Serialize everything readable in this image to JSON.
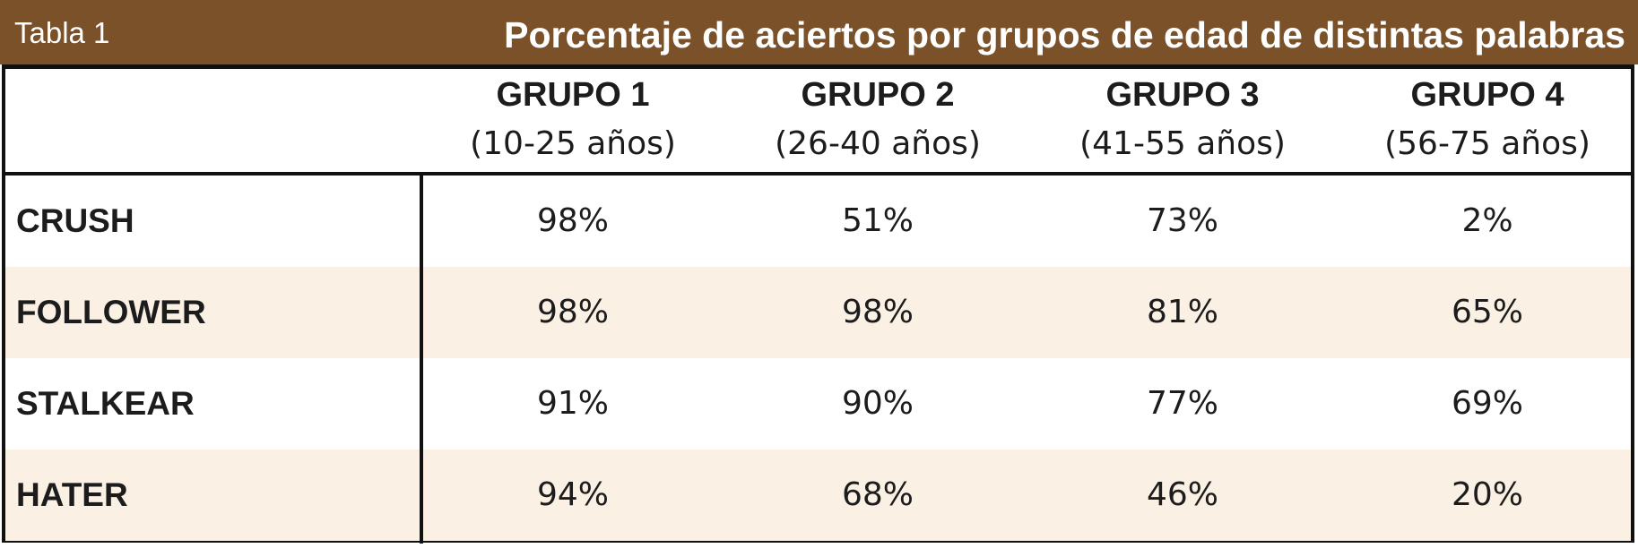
{
  "table": {
    "label": "Tabla 1",
    "title": "Porcentaje de aciertos por grupos de edad de distintas palabras",
    "columns": [
      {
        "group": "GRUPO 1",
        "range": "(10-25 años)"
      },
      {
        "group": "GRUPO 2",
        "range": "(26-40 años)"
      },
      {
        "group": "GRUPO 3",
        "range": "(41-55 años)"
      },
      {
        "group": "GRUPO 4",
        "range": "(56-75 años)"
      }
    ],
    "rows": [
      {
        "word": "CRUSH",
        "values": [
          "98%",
          "51%",
          "73%",
          "2%"
        ]
      },
      {
        "word": "FOLLOWER",
        "values": [
          "98%",
          "98%",
          "81%",
          "65%"
        ]
      },
      {
        "word": "STALKEAR",
        "values": [
          "91%",
          "90%",
          "77%",
          "69%"
        ]
      },
      {
        "word": "HATER",
        "values": [
          "94%",
          "68%",
          "46%",
          "20%"
        ]
      }
    ]
  },
  "colors": {
    "title_bar": "#7b5129",
    "alt_row": "#faf0e4",
    "border": "#111111"
  }
}
